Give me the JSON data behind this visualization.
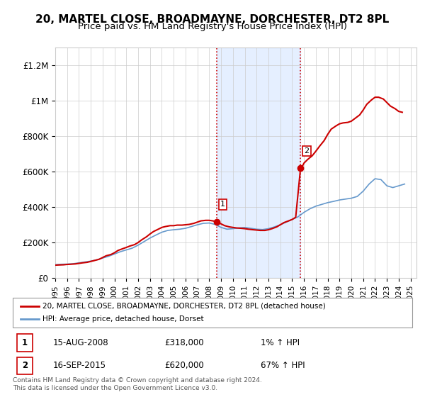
{
  "title": "20, MARTEL CLOSE, BROADMAYNE, DORCHESTER, DT2 8PL",
  "subtitle": "Price paid vs. HM Land Registry's House Price Index (HPI)",
  "title_fontsize": 11,
  "subtitle_fontsize": 9.5,
  "ylabel_ticks": [
    "£0",
    "£200K",
    "£400K",
    "£600K",
    "£800K",
    "£1M",
    "£1.2M"
  ],
  "ytick_vals": [
    0,
    200000,
    400000,
    600000,
    800000,
    1000000,
    1200000
  ],
  "ylim": [
    0,
    1300000
  ],
  "xlim_start": 1995.0,
  "xlim_end": 2025.5,
  "grid_color": "#cccccc",
  "bg_color": "#ffffff",
  "plot_bg": "#ffffff",
  "sale1_x": 2008.62,
  "sale1_y": 318000,
  "sale1_label": "1",
  "sale2_x": 2015.71,
  "sale2_y": 620000,
  "sale2_label": "2",
  "vline1_x": 2008.62,
  "vline2_x": 2015.71,
  "vline_color": "#cc0000",
  "vline_style": ":",
  "shade_color": "#cce0ff",
  "legend_line1_label": "20, MARTEL CLOSE, BROADMAYNE, DORCHESTER, DT2 8PL (detached house)",
  "legend_line2_label": "HPI: Average price, detached house, Dorset",
  "line1_color": "#cc0000",
  "line2_color": "#6699cc",
  "annotation1_date": "15-AUG-2008",
  "annotation1_price": "£318,000",
  "annotation1_hpi": "1% ↑ HPI",
  "annotation2_date": "16-SEP-2015",
  "annotation2_price": "£620,000",
  "annotation2_hpi": "67% ↑ HPI",
  "footer_text": "Contains HM Land Registry data © Crown copyright and database right 2024.\nThis data is licensed under the Open Government Licence v3.0.",
  "hpi_years": [
    1995,
    1995.5,
    1996,
    1996.5,
    1997,
    1997.5,
    1998,
    1998.5,
    1999,
    1999.5,
    2000,
    2000.5,
    2001,
    2001.5,
    2002,
    2002.5,
    2003,
    2003.5,
    2004,
    2004.5,
    2005,
    2005.5,
    2006,
    2006.5,
    2007,
    2007.5,
    2008,
    2008.5,
    2009,
    2009.5,
    2010,
    2010.5,
    2011,
    2011.5,
    2012,
    2012.5,
    2013,
    2013.5,
    2014,
    2014.5,
    2015,
    2015.5,
    2016,
    2016.5,
    2017,
    2017.5,
    2018,
    2018.5,
    2019,
    2019.5,
    2020,
    2020.5,
    2021,
    2021.5,
    2022,
    2022.5,
    2023,
    2023.5,
    2024,
    2024.5
  ],
  "hpi_vals": [
    75000,
    77000,
    78000,
    80000,
    85000,
    90000,
    95000,
    102000,
    112000,
    122000,
    135000,
    148000,
    158000,
    168000,
    185000,
    205000,
    225000,
    242000,
    258000,
    268000,
    272000,
    275000,
    280000,
    290000,
    300000,
    308000,
    310000,
    302000,
    285000,
    275000,
    278000,
    282000,
    285000,
    280000,
    275000,
    273000,
    278000,
    288000,
    300000,
    315000,
    330000,
    345000,
    370000,
    390000,
    405000,
    415000,
    425000,
    432000,
    440000,
    445000,
    450000,
    460000,
    490000,
    530000,
    560000,
    555000,
    520000,
    510000,
    520000,
    530000
  ],
  "price_years": [
    1995,
    1995.3,
    1995.7,
    1996,
    1996.3,
    1996.7,
    1997,
    1997.3,
    1997.7,
    1998,
    1998.3,
    1998.7,
    1999,
    1999.3,
    1999.7,
    2000,
    2000.3,
    2000.7,
    2001,
    2001.3,
    2001.7,
    2002,
    2002.3,
    2002.7,
    2003,
    2003.3,
    2003.7,
    2004,
    2004.3,
    2004.7,
    2005,
    2005.3,
    2005.7,
    2006,
    2006.3,
    2006.7,
    2007,
    2007.3,
    2007.7,
    2008,
    2008.3,
    2008.62,
    2008.7,
    2009,
    2009.3,
    2009.7,
    2010,
    2010.3,
    2010.7,
    2011,
    2011.3,
    2011.7,
    2012,
    2012.3,
    2012.7,
    2013,
    2013.3,
    2013.7,
    2014,
    2014.3,
    2014.7,
    2015,
    2015.3,
    2015.71,
    2015.9,
    2016,
    2016.3,
    2016.7,
    2017,
    2017.3,
    2017.7,
    2018,
    2018.3,
    2018.7,
    2019,
    2019.3,
    2019.7,
    2020,
    2020.3,
    2020.7,
    2021,
    2021.3,
    2021.7,
    2022,
    2022.3,
    2022.7,
    2023,
    2023.3,
    2023.7,
    2024,
    2024.3
  ],
  "price_vals": [
    72000,
    73000,
    74000,
    76000,
    77000,
    79000,
    82000,
    85000,
    88000,
    93000,
    98000,
    105000,
    115000,
    125000,
    132000,
    142000,
    155000,
    165000,
    172000,
    180000,
    188000,
    200000,
    215000,
    232000,
    248000,
    262000,
    275000,
    285000,
    290000,
    295000,
    295000,
    298000,
    298000,
    300000,
    302000,
    308000,
    315000,
    322000,
    325000,
    325000,
    322000,
    318000,
    315000,
    305000,
    295000,
    288000,
    285000,
    282000,
    280000,
    278000,
    275000,
    272000,
    270000,
    268000,
    268000,
    272000,
    278000,
    288000,
    300000,
    312000,
    322000,
    330000,
    342000,
    620000,
    635000,
    648000,
    668000,
    690000,
    715000,
    742000,
    775000,
    810000,
    840000,
    858000,
    870000,
    875000,
    878000,
    885000,
    900000,
    920000,
    948000,
    980000,
    1005000,
    1020000,
    1020000,
    1010000,
    990000,
    970000,
    955000,
    940000,
    935000
  ]
}
